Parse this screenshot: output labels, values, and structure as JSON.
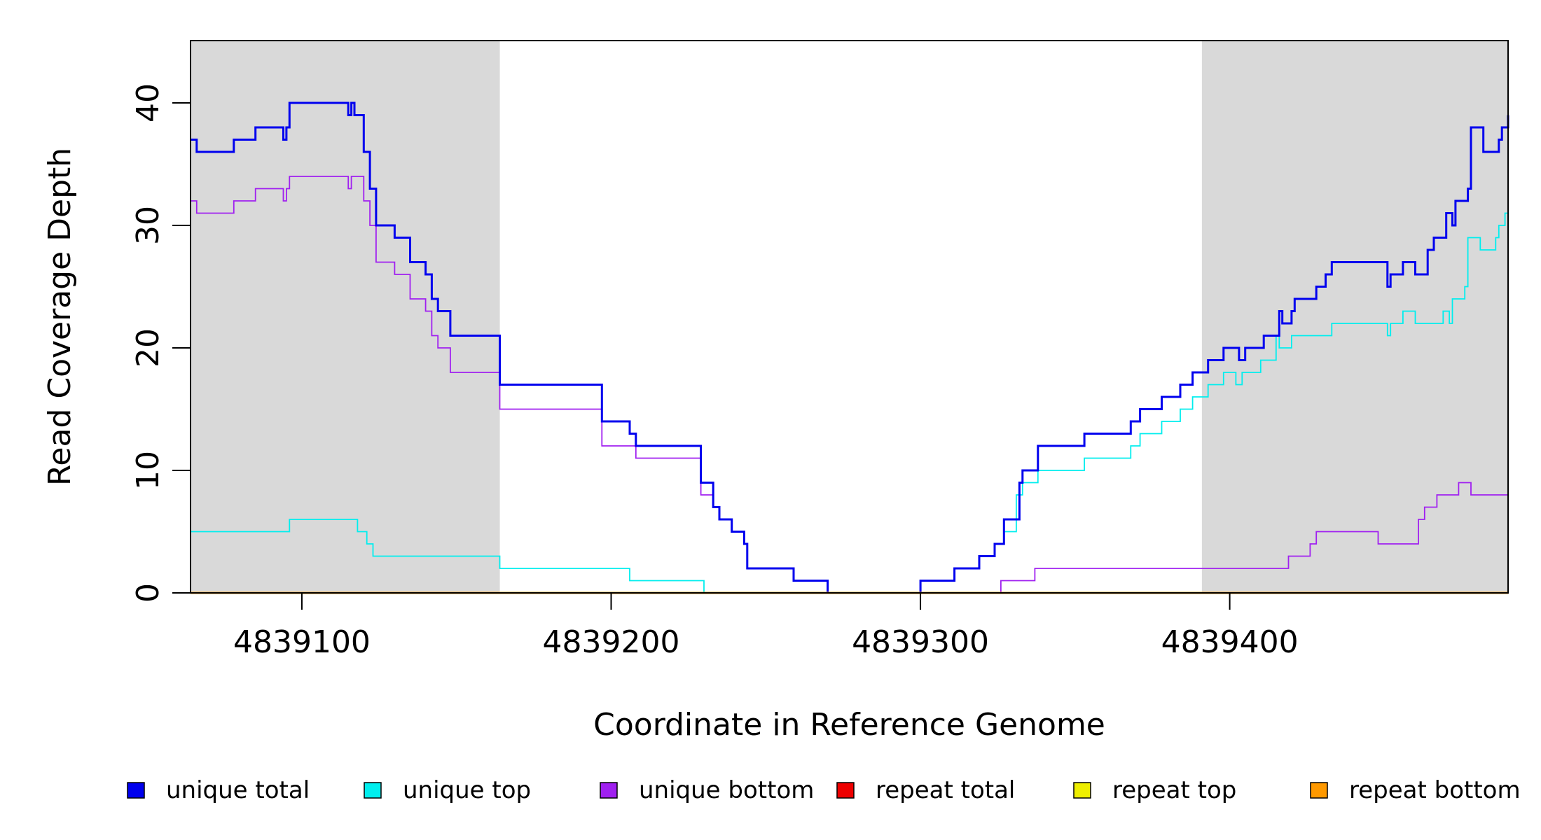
{
  "chart_data": {
    "type": "line",
    "title": "",
    "xlabel": "Coordinate in Reference Genome",
    "ylabel": "Read Coverage Depth",
    "xlim": [
      4839064,
      4839490
    ],
    "ylim": [
      0,
      45
    ],
    "x_ticks": [
      4839100,
      4839200,
      4839300,
      4839400
    ],
    "x_tick_labels": [
      "4839100",
      "4839200",
      "4839300",
      "4839400"
    ],
    "y_ticks": [
      0,
      10,
      20,
      30,
      40
    ],
    "y_tick_labels": [
      "0",
      "10",
      "20",
      "30",
      "40"
    ],
    "shaded_regions": [
      [
        4839064,
        4839164
      ],
      [
        4839391,
        4839490
      ]
    ],
    "grid": false,
    "legend_position": "bottom",
    "legend": [
      {
        "label": "unique total",
        "color": "#0000ee"
      },
      {
        "label": "unique top",
        "color": "#00eeee"
      },
      {
        "label": "unique bottom",
        "color": "#a020f0"
      },
      {
        "label": "repeat total",
        "color": "#ee0000"
      },
      {
        "label": "repeat top",
        "color": "#eeee00"
      },
      {
        "label": "repeat bottom",
        "color": "#ff9900"
      }
    ],
    "series": [
      {
        "name": "unique total",
        "color": "#0000ee",
        "points": [
          [
            4839064,
            37
          ],
          [
            4839066,
            36
          ],
          [
            4839078,
            37
          ],
          [
            4839085,
            38
          ],
          [
            4839094,
            37
          ],
          [
            4839095,
            38
          ],
          [
            4839096,
            40
          ],
          [
            4839115,
            39
          ],
          [
            4839116,
            40
          ],
          [
            4839117,
            39
          ],
          [
            4839120,
            36
          ],
          [
            4839122,
            33
          ],
          [
            4839124,
            30
          ],
          [
            4839130,
            29
          ],
          [
            4839135,
            27
          ],
          [
            4839140,
            26
          ],
          [
            4839142,
            24
          ],
          [
            4839144,
            23
          ],
          [
            4839148,
            21
          ],
          [
            4839164,
            17
          ],
          [
            4839197,
            14
          ],
          [
            4839206,
            13
          ],
          [
            4839208,
            12
          ],
          [
            4839229,
            9
          ],
          [
            4839233,
            7
          ],
          [
            4839235,
            6
          ],
          [
            4839239,
            5
          ],
          [
            4839243,
            4
          ],
          [
            4839244,
            2
          ],
          [
            4839259,
            1
          ],
          [
            4839270,
            0
          ],
          [
            4839300,
            1
          ],
          [
            4839311,
            2
          ],
          [
            4839319,
            3
          ],
          [
            4839324,
            4
          ],
          [
            4839327,
            6
          ],
          [
            4839332,
            9
          ],
          [
            4839333,
            10
          ],
          [
            4839338,
            12
          ],
          [
            4839353,
            13
          ],
          [
            4839368,
            14
          ],
          [
            4839371,
            15
          ],
          [
            4839378,
            16
          ],
          [
            4839384,
            17
          ],
          [
            4839388,
            18
          ],
          [
            4839393,
            19
          ],
          [
            4839398,
            20
          ],
          [
            4839403,
            19
          ],
          [
            4839405,
            20
          ],
          [
            4839411,
            21
          ],
          [
            4839416,
            23
          ],
          [
            4839417,
            22
          ],
          [
            4839420,
            23
          ],
          [
            4839421,
            24
          ],
          [
            4839428,
            25
          ],
          [
            4839431,
            26
          ],
          [
            4839433,
            27
          ],
          [
            4839451,
            25
          ],
          [
            4839452,
            26
          ],
          [
            4839456,
            27
          ],
          [
            4839460,
            26
          ],
          [
            4839464,
            28
          ],
          [
            4839466,
            29
          ],
          [
            4839470,
            31
          ],
          [
            4839472,
            30
          ],
          [
            4839473,
            32
          ],
          [
            4839477,
            33
          ],
          [
            4839478,
            38
          ],
          [
            4839482,
            36
          ],
          [
            4839487,
            37
          ],
          [
            4839488,
            38
          ],
          [
            4839490,
            39
          ]
        ]
      },
      {
        "name": "unique top",
        "color": "#00eeee",
        "points": [
          [
            4839064,
            5
          ],
          [
            4839096,
            6
          ],
          [
            4839118,
            5
          ],
          [
            4839121,
            4
          ],
          [
            4839123,
            3
          ],
          [
            4839164,
            2
          ],
          [
            4839206,
            1
          ],
          [
            4839230,
            0
          ],
          [
            4839300,
            1
          ],
          [
            4839311,
            2
          ],
          [
            4839319,
            3
          ],
          [
            4839324,
            4
          ],
          [
            4839327,
            5
          ],
          [
            4839331,
            8
          ],
          [
            4839333,
            9
          ],
          [
            4839338,
            10
          ],
          [
            4839353,
            11
          ],
          [
            4839368,
            12
          ],
          [
            4839371,
            13
          ],
          [
            4839378,
            14
          ],
          [
            4839384,
            15
          ],
          [
            4839388,
            16
          ],
          [
            4839393,
            17
          ],
          [
            4839398,
            18
          ],
          [
            4839402,
            17
          ],
          [
            4839404,
            18
          ],
          [
            4839410,
            19
          ],
          [
            4839415,
            21
          ],
          [
            4839416,
            20
          ],
          [
            4839420,
            21
          ],
          [
            4839433,
            22
          ],
          [
            4839451,
            21
          ],
          [
            4839452,
            22
          ],
          [
            4839456,
            23
          ],
          [
            4839460,
            22
          ],
          [
            4839469,
            23
          ],
          [
            4839471,
            22
          ],
          [
            4839472,
            24
          ],
          [
            4839476,
            25
          ],
          [
            4839477,
            29
          ],
          [
            4839481,
            28
          ],
          [
            4839486,
            29
          ],
          [
            4839487,
            30
          ],
          [
            4839489,
            31
          ]
        ]
      },
      {
        "name": "unique bottom",
        "color": "#a020f0",
        "points": [
          [
            4839064,
            32
          ],
          [
            4839066,
            31
          ],
          [
            4839078,
            32
          ],
          [
            4839085,
            33
          ],
          [
            4839094,
            32
          ],
          [
            4839095,
            33
          ],
          [
            4839096,
            34
          ],
          [
            4839115,
            33
          ],
          [
            4839116,
            34
          ],
          [
            4839120,
            32
          ],
          [
            4839122,
            30
          ],
          [
            4839124,
            27
          ],
          [
            4839130,
            26
          ],
          [
            4839135,
            24
          ],
          [
            4839140,
            23
          ],
          [
            4839142,
            21
          ],
          [
            4839144,
            20
          ],
          [
            4839148,
            18
          ],
          [
            4839164,
            15
          ],
          [
            4839197,
            12
          ],
          [
            4839208,
            11
          ],
          [
            4839229,
            8
          ],
          [
            4839233,
            7
          ],
          [
            4839235,
            6
          ],
          [
            4839239,
            5
          ],
          [
            4839243,
            4
          ],
          [
            4839244,
            2
          ],
          [
            4839259,
            1
          ],
          [
            4839270,
            0
          ],
          [
            4839326,
            1
          ],
          [
            4839337,
            2
          ],
          [
            4839419,
            3
          ],
          [
            4839426,
            4
          ],
          [
            4839428,
            5
          ],
          [
            4839448,
            4
          ],
          [
            4839461,
            6
          ],
          [
            4839463,
            7
          ],
          [
            4839467,
            8
          ],
          [
            4839474,
            9
          ],
          [
            4839478,
            8
          ],
          [
            4839490,
            8
          ]
        ]
      },
      {
        "name": "repeat total",
        "color": "#ee0000",
        "points": [
          [
            4839064,
            0
          ],
          [
            4839490,
            0
          ]
        ]
      },
      {
        "name": "repeat top",
        "color": "#eeee00",
        "points": [
          [
            4839064,
            0
          ],
          [
            4839490,
            0
          ]
        ]
      },
      {
        "name": "repeat bottom",
        "color": "#ff9900",
        "points": [
          [
            4839064,
            0
          ],
          [
            4839490,
            0
          ]
        ]
      }
    ]
  }
}
